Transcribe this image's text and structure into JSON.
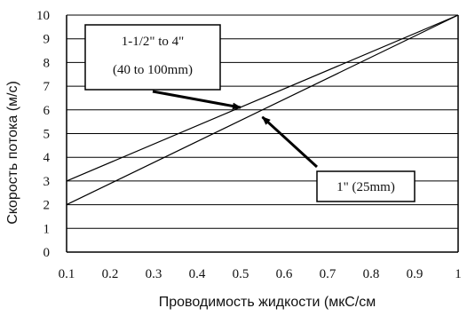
{
  "chart_data": {
    "type": "line",
    "xlabel": "Проводимость жидкости (мкС/см",
    "ylabel": "Скорость потока (м/с)",
    "xlim": [
      0.1,
      1
    ],
    "ylim": [
      0,
      10
    ],
    "x_ticks": [
      "0.1",
      "0.2",
      "0.3",
      "0.4",
      "0.5",
      "0.6",
      "0.7",
      "0.8",
      "0.9",
      "1"
    ],
    "y_ticks": [
      "0",
      "1",
      "2",
      "3",
      "4",
      "5",
      "6",
      "7",
      "8",
      "9",
      "10"
    ],
    "grid": "horizontal",
    "series": [
      {
        "x": [
          0.1,
          1
        ],
        "y": [
          3,
          10
        ]
      },
      {
        "x": [
          0.1,
          1
        ],
        "y": [
          2,
          10
        ]
      }
    ],
    "annotations": [
      {
        "lines": [
          "1-1/2\" to 4\"",
          "(40 to 100mm)"
        ],
        "target": [
          0.5,
          6.1
        ]
      },
      {
        "lines": [
          "1\" (25mm)"
        ],
        "target": [
          0.55,
          5.7
        ]
      }
    ]
  }
}
